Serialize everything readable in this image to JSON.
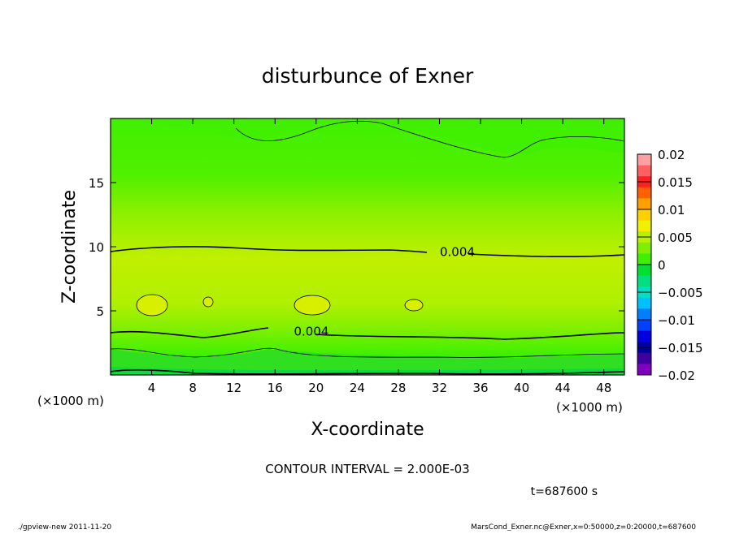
{
  "chart_data": {
    "type": "heatmap",
    "title": "disturbunce of Exner",
    "xlabel": "X-coordinate",
    "ylabel": "Z-coordinate",
    "x_unit": "(×1000 m)",
    "x_unit_right": "(×1000 m)",
    "xlim": [
      0,
      50
    ],
    "ylim": [
      0,
      20
    ],
    "x_ticks": [
      4,
      8,
      12,
      16,
      20,
      24,
      28,
      32,
      36,
      40,
      44,
      48
    ],
    "y_ticks": [
      5,
      10,
      15
    ],
    "x": [
      0,
      5,
      10,
      15,
      20,
      25,
      30,
      35,
      40,
      45,
      50
    ],
    "z": [
      0,
      2,
      4,
      6,
      8,
      10,
      12,
      14,
      16,
      18,
      20
    ],
    "contour_interval_text": "CONTOUR INTERVAL = 2.000E-03",
    "time_text": "t=687600 s",
    "contour_labels": [
      {
        "text": "0.004",
        "x": 32,
        "z": 9.6
      },
      {
        "text": "0.004",
        "x": 17.8,
        "z": 3.4
      }
    ],
    "colorbar": {
      "ticks": [
        "0.02",
        "0.015",
        "0.01",
        "0.005",
        "0",
        "−0.005",
        "−0.01",
        "−0.015",
        "−0.02"
      ],
      "colors": [
        "#ffa0a0",
        "#ff6060",
        "#ff2020",
        "#ff6000",
        "#ffa000",
        "#ffd000",
        "#f0f000",
        "#b8f000",
        "#80f000",
        "#40f000",
        "#00e030",
        "#00e080",
        "#00e0c0",
        "#00c0ff",
        "#0080ff",
        "#0040ff",
        "#0000e0",
        "#0000a0",
        "#4000a0",
        "#8000c0"
      ]
    }
  },
  "footer": {
    "left": "./gpview-new   2011-11-20",
    "right": "MarsCond_Exner.nc@Exner,x=0:50000,z=0:20000,t=687600"
  }
}
